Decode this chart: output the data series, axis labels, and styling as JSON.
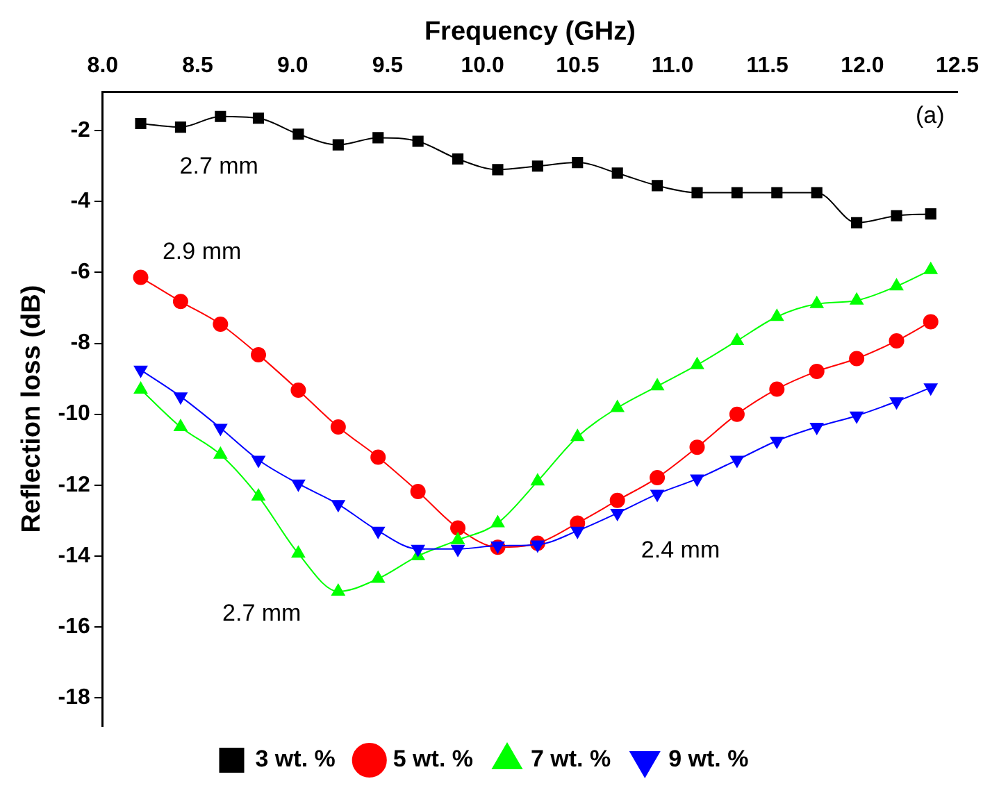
{
  "chart_data": {
    "type": "line",
    "xlabel": "Frequency (GHz)",
    "ylabel": "Reflection loss (dB)",
    "x": [
      8.2,
      8.41,
      8.62,
      8.82,
      9.03,
      9.24,
      9.45,
      9.66,
      9.87,
      10.08,
      10.29,
      10.5,
      10.71,
      10.92,
      11.13,
      11.34,
      11.55,
      11.76,
      11.97,
      12.18,
      12.36
    ],
    "xlim": [
      8.0,
      12.5
    ],
    "xticks": [
      {
        "value": 8,
        "label": "8.0"
      },
      8.5,
      {
        "value": 9,
        "label": "9.0"
      },
      9.5,
      {
        "value": 10,
        "label": "10.0"
      },
      10.5,
      {
        "value": 11,
        "label": "11.0"
      },
      11.5,
      {
        "value": 12,
        "label": "12.0"
      },
      12.5
    ],
    "ylim": [
      -18.8,
      -0.9
    ],
    "yticks": [
      -2,
      -4,
      -6,
      -8,
      -10,
      -12,
      -14,
      -16,
      -18
    ],
    "grid": false,
    "legend": "bottom",
    "series": [
      {
        "name": "3 wt. %",
        "color": "#000000",
        "marker": "square",
        "values": [
          -1.8,
          -1.9,
          -1.6,
          -1.65,
          -2.1,
          -2.4,
          -2.2,
          -2.3,
          -2.8,
          -3.1,
          -3.0,
          -2.9,
          -3.2,
          -3.55,
          -3.75,
          -3.75,
          -3.75,
          -3.75,
          -4.6,
          -4.4,
          -4.35
        ]
      },
      {
        "name": "5 wt. %",
        "color": "#ff0000",
        "marker": "circle",
        "values": [
          -6.14,
          -6.82,
          -7.46,
          -8.32,
          -9.32,
          -10.36,
          -11.21,
          -12.18,
          -13.21,
          -13.75,
          -13.64,
          -13.07,
          -12.43,
          -11.79,
          -10.93,
          -10.0,
          -9.29,
          -8.79,
          -8.43,
          -7.93,
          -7.39
        ]
      },
      {
        "name": "7 wt. %",
        "color": "#00ff00",
        "marker": "triangle",
        "values": [
          -9.3,
          -10.36,
          -11.14,
          -12.32,
          -13.93,
          -15.0,
          -14.64,
          -14.0,
          -13.55,
          -13.07,
          -11.89,
          -10.64,
          -9.82,
          -9.21,
          -8.61,
          -7.93,
          -7.25,
          -6.89,
          -6.79,
          -6.39,
          -5.93
        ]
      },
      {
        "name": "9 wt. %",
        "color": "#0000ff",
        "marker": "triangle-down",
        "values": [
          -8.75,
          -9.5,
          -10.39,
          -11.29,
          -11.96,
          -12.54,
          -13.29,
          -13.8,
          -13.8,
          -13.71,
          -13.68,
          -13.29,
          -12.79,
          -12.25,
          -11.82,
          -11.29,
          -10.75,
          -10.36,
          -10.04,
          -9.64,
          -9.25
        ]
      }
    ],
    "annotations": [
      "(a)",
      "2.7 mm",
      "2.9 mm",
      "2.4 mm",
      "2.7 mm"
    ]
  }
}
